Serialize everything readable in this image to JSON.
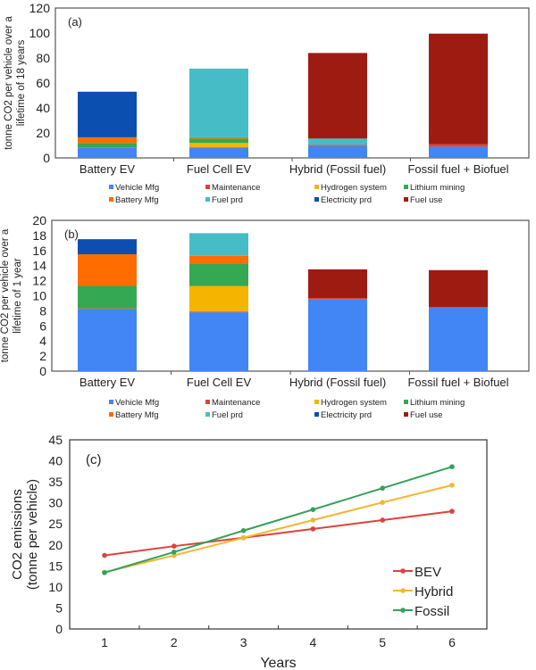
{
  "chart_data": [
    {
      "type": "bar",
      "stacked": true,
      "panel_label": "(a)",
      "ylabel": "tonne CO2 per vehicle over a lifetime of 18 years",
      "ylim": [
        0,
        120
      ],
      "yticks": [
        0,
        20,
        40,
        60,
        80,
        100,
        120
      ],
      "categories": [
        "Battery EV",
        "Fuel Cell EV",
        "Hybrid (Fossil fuel)",
        "Fossil fuel + Biofuel"
      ],
      "legend_position": "bottom",
      "series": [
        {
          "name": "Vehicle Mfg",
          "color": "#4285f4",
          "values": [
            8,
            8,
            9.5,
            9
          ]
        },
        {
          "name": "Maintenance",
          "color": "#db4437",
          "values": [
            0.5,
            0.5,
            1,
            2
          ]
        },
        {
          "name": "Hydrogen system",
          "color": "#f4b400",
          "values": [
            0,
            3.5,
            0,
            0
          ]
        },
        {
          "name": "Lithium mining",
          "color": "#34a853",
          "values": [
            3.5,
            3.5,
            0,
            0
          ]
        },
        {
          "name": "Battery Mfg",
          "color": "#ff6d01",
          "values": [
            4.5,
            1,
            0,
            0
          ]
        },
        {
          "name": "Fuel prd",
          "color": "#46bdc6",
          "values": [
            0,
            55,
            5,
            0
          ]
        },
        {
          "name": "Electricity prd",
          "color": "#0b4fb0",
          "values": [
            36.5,
            0,
            0,
            0
          ]
        },
        {
          "name": "Fuel use",
          "color": "#9e1b12",
          "values": [
            0,
            0,
            68.5,
            88.5
          ]
        }
      ]
    },
    {
      "type": "bar",
      "stacked": true,
      "panel_label": "(b)",
      "ylabel": "tonne CO2 per vehicle over a lifetime of 1 year",
      "ylim": [
        0,
        20
      ],
      "yticks": [
        0,
        2,
        4,
        6,
        8,
        10,
        12,
        14,
        16,
        18,
        20
      ],
      "categories": [
        "Battery EV",
        "Fuel Cell EV",
        "Hybrid (Fossil fuel)",
        "Fossil fuel + Biofuel"
      ],
      "legend_position": "bottom",
      "series": [
        {
          "name": "Vehicle Mfg",
          "color": "#4285f4",
          "values": [
            8.2,
            7.8,
            9.5,
            8.4
          ]
        },
        {
          "name": "Maintenance",
          "color": "#db4437",
          "values": [
            0.1,
            0.1,
            0.2,
            0.1
          ]
        },
        {
          "name": "Hydrogen system",
          "color": "#f4b400",
          "values": [
            0,
            3.4,
            0,
            0
          ]
        },
        {
          "name": "Lithium mining",
          "color": "#34a853",
          "values": [
            3,
            3,
            0,
            0
          ]
        },
        {
          "name": "Battery Mfg",
          "color": "#ff6d01",
          "values": [
            4.2,
            1,
            0,
            0
          ]
        },
        {
          "name": "Fuel prd",
          "color": "#46bdc6",
          "values": [
            0,
            3,
            0,
            0
          ]
        },
        {
          "name": "Electricity prd",
          "color": "#0b4fb0",
          "values": [
            2,
            0,
            0,
            0
          ]
        },
        {
          "name": "Fuel use",
          "color": "#9e1b12",
          "values": [
            0,
            0,
            3.8,
            4.9
          ]
        }
      ]
    },
    {
      "type": "line",
      "panel_label": "(c)",
      "xlabel": "Years",
      "ylabel": "CO2 emissions (tonne per vehicle)",
      "x": [
        1,
        2,
        3,
        4,
        5,
        6
      ],
      "ylim": [
        0,
        45
      ],
      "yticks": [
        0,
        5,
        10,
        15,
        20,
        25,
        30,
        35,
        40,
        45
      ],
      "legend_position": "bottom-right",
      "series": [
        {
          "name": "BEV",
          "color": "#d9433b",
          "values": [
            17.5,
            19.7,
            21.7,
            23.8,
            25.9,
            28.0
          ]
        },
        {
          "name": "Hybrid",
          "color": "#f2b632",
          "values": [
            13.5,
            17.5,
            21.7,
            25.9,
            30.1,
            34.2
          ]
        },
        {
          "name": "Fossil",
          "color": "#35a05a",
          "values": [
            13.4,
            18.3,
            23.4,
            28.4,
            33.5,
            38.6
          ]
        }
      ]
    }
  ]
}
